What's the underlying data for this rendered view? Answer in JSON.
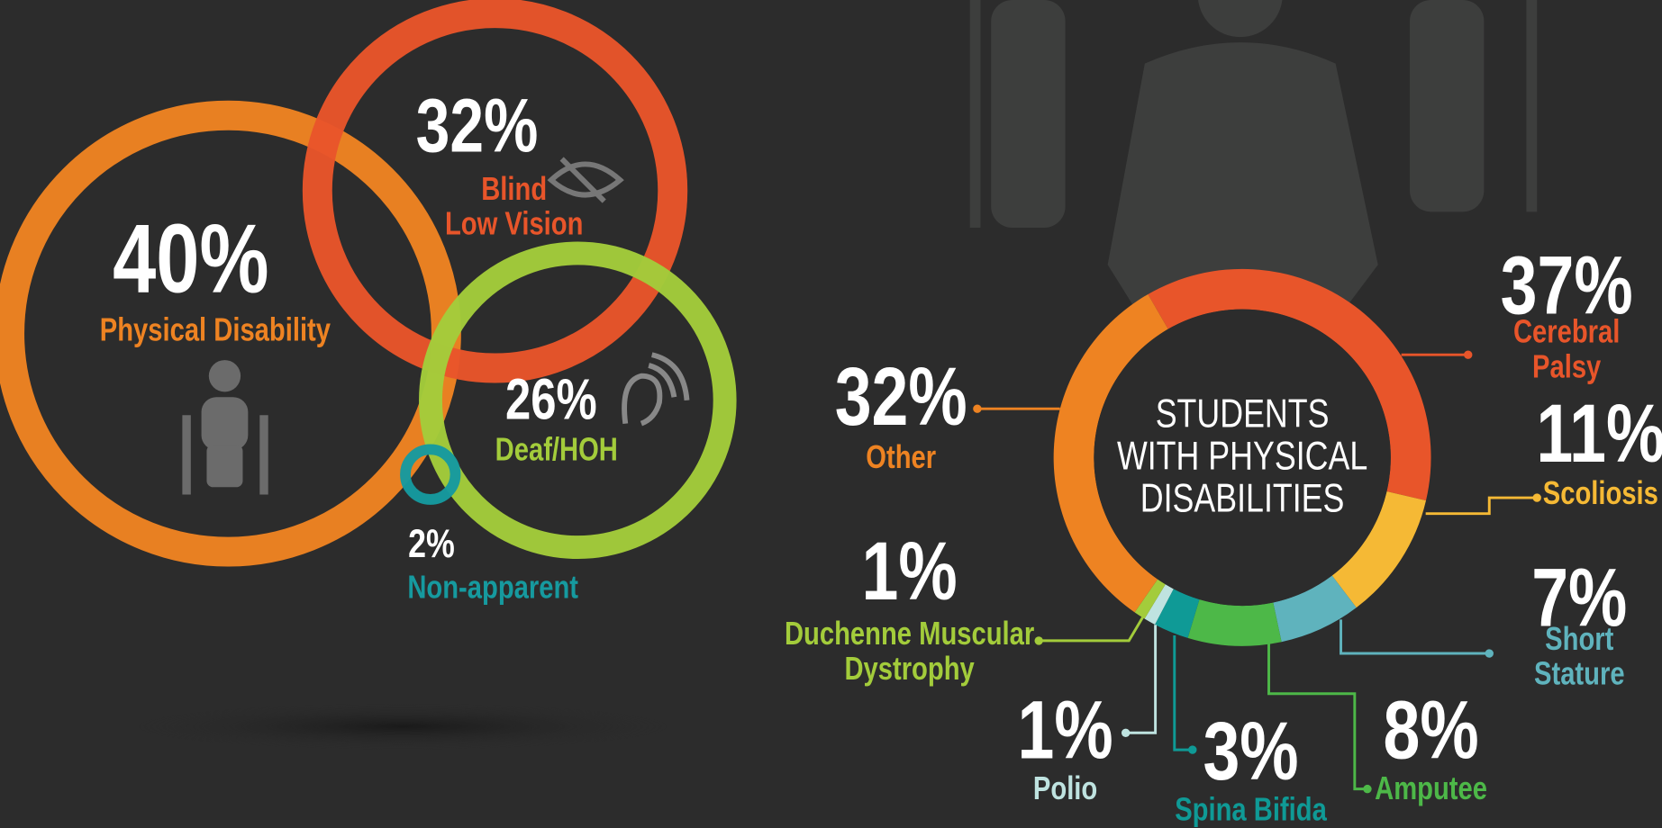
{
  "chart_data": [
    {
      "type": "bubble",
      "categories": [
        "Physical Disability",
        "Blind\nLow Vision",
        "Deaf/HOH",
        "Non-apparent"
      ],
      "values": [
        40,
        32,
        26,
        2
      ],
      "value_labels": [
        "40%",
        "32%",
        "26%",
        "2%"
      ],
      "colors": [
        "#ee8322",
        "#e8552a",
        "#a3cc3b",
        "#169a9f"
      ]
    },
    {
      "type": "donut",
      "title": "STUDENTS\nWITH PHYSICAL\nDISABILITIES",
      "categories": [
        "Cerebral Palsy",
        "Scoliosis",
        "Short Stature",
        "Amputee",
        "Spina Bifida",
        "Polio",
        "Duchenne Muscular\nDystrophy",
        "Other"
      ],
      "values": [
        37,
        11,
        7,
        8,
        3,
        1,
        1,
        32
      ],
      "value_labels": [
        "37%",
        "11%",
        "7%",
        "8%",
        "3%",
        "1%",
        "1%",
        "32%"
      ],
      "colors": [
        "#e8552a",
        "#f5b935",
        "#5fb3bd",
        "#4db848",
        "#0f9a96",
        "#bfe3e0",
        "#a3cc3b",
        "#ee8322"
      ]
    }
  ]
}
